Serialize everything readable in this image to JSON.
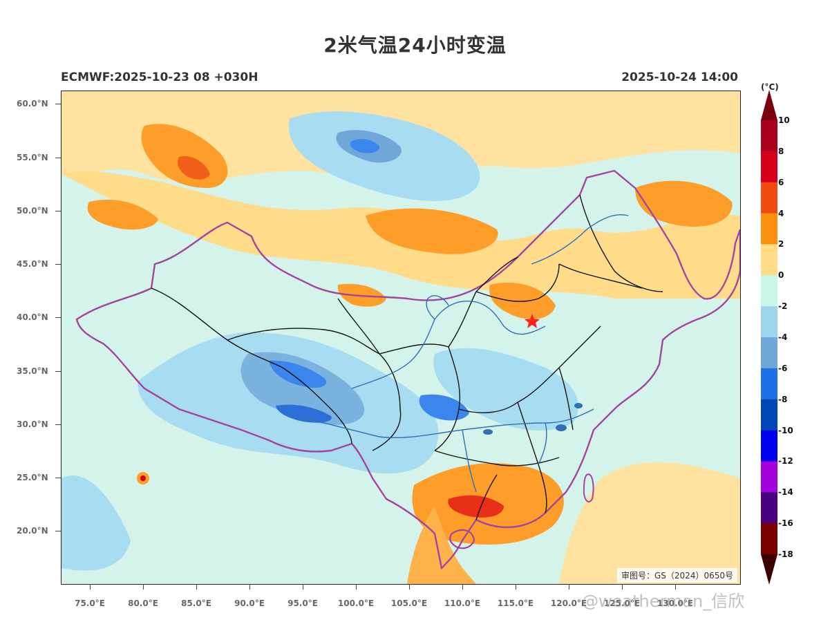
{
  "header": {
    "title": "2米气温24小时变温",
    "model_run": "ECMWF:2025-10-23 08 +030H",
    "valid_time": "2025-10-24 14:00"
  },
  "map": {
    "approval_number": "审图号：GS（2024）0650号",
    "lat_labels": [
      "60.0°N",
      "55.0°N",
      "50.0°N",
      "45.0°N",
      "40.0°N",
      "35.0°N",
      "30.0°N",
      "25.0°N",
      "20.0°N"
    ],
    "lon_labels": [
      "75.0°E",
      "80.0°E",
      "85.0°E",
      "90.0°E",
      "95.0°E",
      "100.0°E",
      "105.0°E",
      "110.0°E",
      "115.0°E",
      "120.0°E",
      "125.0°E",
      "130.0°E"
    ],
    "extent": {
      "lon": [
        72,
        136
      ],
      "lat": [
        14.5,
        61
      ]
    },
    "colors": {
      "border": "#a0469c",
      "province": "#111111",
      "river": "#2f6fb5",
      "capital_marker": "#ff2020"
    }
  },
  "legend": {
    "unit": "(°C)",
    "labels": [
      "10",
      "8",
      "6",
      "4",
      "2",
      "0",
      "-2",
      "-4",
      "-6",
      "-8",
      "-10",
      "-12",
      "-14",
      "-16",
      "-18"
    ],
    "colors": [
      "#a8001c",
      "#d7001a",
      "#f04a12",
      "#fd8f0e",
      "#fedc88",
      "#c8f6e8",
      "#9ed5ee",
      "#6fa8d6",
      "#1f70e8",
      "#0046b8",
      "#0000ef",
      "#a400e0",
      "#4a0080",
      "#7a0000"
    ],
    "top_extension_color": "#7a0010",
    "bottom_extension_color": "#3c0000"
  },
  "watermark": "@weatherman_信欣"
}
